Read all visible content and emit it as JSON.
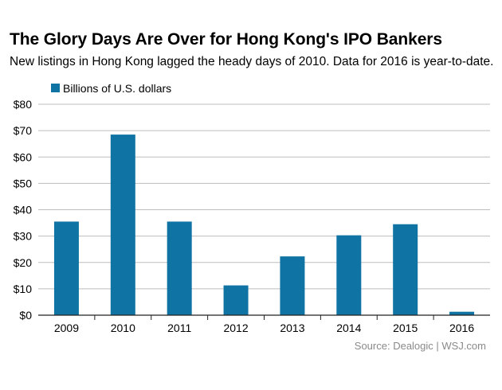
{
  "header": {
    "title": "The Glory Days Are Over for Hong Kong's IPO Bankers",
    "subtitle": "New listings in Hong Kong lagged the heady days of 2010. Data for 2016 is year-to-date."
  },
  "source": "Source: Dealogic  |  WSJ.com",
  "colors": {
    "bar": "#0f73a3",
    "grid": "#bdbdbd",
    "axis": "#222222"
  },
  "chart_data": {
    "type": "bar",
    "title": "The Glory Days Are Over for Hong Kong's IPO Bankers",
    "xlabel": "",
    "ylabel": "",
    "categories": [
      "2009",
      "2010",
      "2011",
      "2012",
      "2013",
      "2014",
      "2015",
      "2016"
    ],
    "series": [
      {
        "name": "Billions of U.S. dollars",
        "values": [
          35.5,
          68.5,
          35.5,
          11.3,
          22.3,
          30.3,
          34.5,
          1.3
        ]
      }
    ],
    "ylim": [
      0,
      80
    ],
    "yticks": [
      0,
      10,
      20,
      30,
      40,
      50,
      60,
      70,
      80
    ],
    "ytick_labels": [
      "$0",
      "$10",
      "$20",
      "$30",
      "$40",
      "$50",
      "$60",
      "$70",
      "$80"
    ],
    "grid": true,
    "legend": "top-left"
  }
}
